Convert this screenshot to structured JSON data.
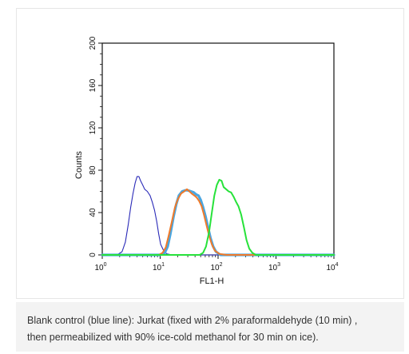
{
  "caption": {
    "line1": "Blank control (blue line): Jurkat (fixed with 2% paraformaldehyde (10 min) ,",
    "line2": "then permeabilized with 90% ice-cold methanol for 30 min on ice)."
  },
  "colors": {
    "blank_control": "#2a2ab8",
    "isotype_blue": "#4aa6e0",
    "orange": "#f07a2a",
    "green": "#27e23a"
  },
  "chart_data": {
    "type": "line",
    "title": "",
    "xlabel": "FL1-H",
    "ylabel": "Counts",
    "x_scale": "log",
    "xlim": [
      1,
      10000
    ],
    "ylim": [
      0,
      200
    ],
    "x_ticks": [
      {
        "base": "10",
        "exp": "0",
        "value": 1
      },
      {
        "base": "10",
        "exp": "1",
        "value": 10
      },
      {
        "base": "10",
        "exp": "2",
        "value": 100
      },
      {
        "base": "10",
        "exp": "3",
        "value": 1000
      },
      {
        "base": "10",
        "exp": "4",
        "value": 10000
      }
    ],
    "y_ticks": [
      "0",
      "40",
      "80",
      "120",
      "160",
      "200"
    ],
    "legend": "none",
    "grid": false,
    "series": [
      {
        "color": "#2a2ab8",
        "points": [
          [
            1,
            0
          ],
          [
            1.8,
            0
          ],
          [
            2.2,
            3
          ],
          [
            2.5,
            12
          ],
          [
            2.8,
            28
          ],
          [
            3.1,
            45
          ],
          [
            3.4,
            58
          ],
          [
            3.7,
            68
          ],
          [
            4.0,
            74
          ],
          [
            4.3,
            74
          ],
          [
            4.6,
            70
          ],
          [
            5.0,
            66
          ],
          [
            5.4,
            62
          ],
          [
            6.0,
            60
          ],
          [
            6.7,
            56
          ],
          [
            7.3,
            50
          ],
          [
            8.0,
            42
          ],
          [
            8.7,
            32
          ],
          [
            9.4,
            20
          ],
          [
            10.2,
            10
          ],
          [
            11.5,
            4
          ],
          [
            13,
            1
          ],
          [
            16,
            0
          ],
          [
            10000,
            0
          ]
        ]
      },
      {
        "color": "#4aa6e0",
        "points": [
          [
            1,
            0
          ],
          [
            10,
            0
          ],
          [
            12,
            2
          ],
          [
            13.5,
            8
          ],
          [
            15,
            20
          ],
          [
            17,
            36
          ],
          [
            19,
            48
          ],
          [
            21,
            56
          ],
          [
            24,
            60
          ],
          [
            27,
            61
          ],
          [
            30,
            61
          ],
          [
            34,
            60
          ],
          [
            38,
            59
          ],
          [
            42,
            57
          ],
          [
            46,
            56
          ],
          [
            50,
            52
          ],
          [
            55,
            45
          ],
          [
            61,
            36
          ],
          [
            67,
            26
          ],
          [
            74,
            16
          ],
          [
            82,
            8
          ],
          [
            92,
            3
          ],
          [
            110,
            0
          ],
          [
            10000,
            0
          ]
        ]
      },
      {
        "color": "#f07a2a",
        "points": [
          [
            1,
            0
          ],
          [
            9.5,
            0
          ],
          [
            11,
            2
          ],
          [
            12.5,
            7
          ],
          [
            14,
            18
          ],
          [
            16,
            32
          ],
          [
            18,
            45
          ],
          [
            20,
            52
          ],
          [
            23,
            58
          ],
          [
            26,
            60
          ],
          [
            29,
            62
          ],
          [
            32,
            60
          ],
          [
            35,
            58
          ],
          [
            39,
            56
          ],
          [
            43,
            54
          ],
          [
            47,
            51
          ],
          [
            52,
            46
          ],
          [
            57,
            38
          ],
          [
            63,
            28
          ],
          [
            70,
            18
          ],
          [
            78,
            10
          ],
          [
            88,
            4
          ],
          [
            105,
            1
          ],
          [
            140,
            0
          ],
          [
            10000,
            0
          ]
        ]
      },
      {
        "color": "#27e23a",
        "points": [
          [
            1,
            0
          ],
          [
            48,
            0
          ],
          [
            55,
            2
          ],
          [
            62,
            8
          ],
          [
            70,
            22
          ],
          [
            78,
            40
          ],
          [
            86,
            56
          ],
          [
            95,
            66
          ],
          [
            105,
            71
          ],
          [
            115,
            70
          ],
          [
            125,
            64
          ],
          [
            138,
            62
          ],
          [
            152,
            60
          ],
          [
            168,
            59
          ],
          [
            185,
            55
          ],
          [
            205,
            50
          ],
          [
            225,
            46
          ],
          [
            250,
            38
          ],
          [
            280,
            26
          ],
          [
            310,
            14
          ],
          [
            345,
            6
          ],
          [
            390,
            2
          ],
          [
            450,
            0
          ],
          [
            10000,
            0
          ]
        ]
      }
    ]
  }
}
